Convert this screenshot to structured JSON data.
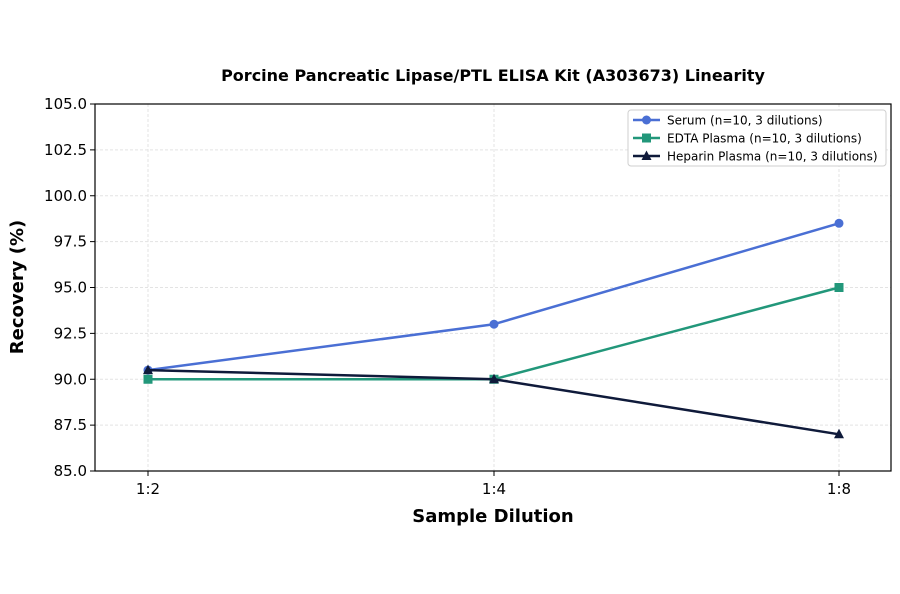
{
  "chart_data": {
    "type": "line",
    "title": "Porcine Pancreatic Lipase/PTL ELISA Kit (A303673) Linearity",
    "xlabel": "Sample Dilution",
    "ylabel": "Recovery (%)",
    "categories": [
      "1:2",
      "1:4",
      "1:8"
    ],
    "ylim": [
      85.0,
      105.0
    ],
    "yticks": [
      "85.0",
      "87.5",
      "90.0",
      "92.5",
      "95.0",
      "97.5",
      "100.0",
      "102.5",
      "105.0"
    ],
    "grid": true,
    "legend_position": "top-right",
    "series": [
      {
        "name": "Serum (n=10, 3 dilutions)",
        "values": [
          90.5,
          93.0,
          98.5
        ],
        "color": "#4a6fd4",
        "marker": "circle"
      },
      {
        "name": "EDTA Plasma (n=10, 3 dilutions)",
        "values": [
          90.0,
          90.0,
          95.0
        ],
        "color": "#22977a",
        "marker": "square"
      },
      {
        "name": "Heparin Plasma (n=10, 3 dilutions)",
        "values": [
          90.5,
          90.0,
          87.0
        ],
        "color": "#0f1a3a",
        "marker": "triangle"
      }
    ]
  }
}
